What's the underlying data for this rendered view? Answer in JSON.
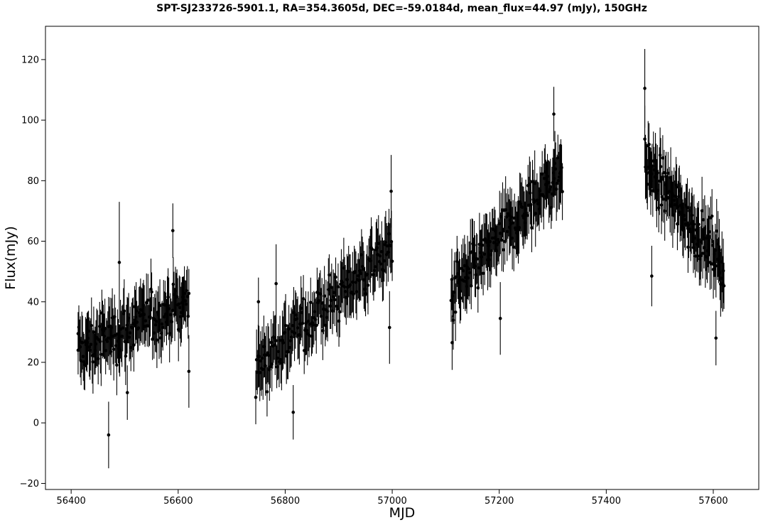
{
  "chart_data": {
    "type": "scatter",
    "title": "SPT-SJ233726-5901.1, RA=354.3605d, DEC=-59.0184d, mean_flux=44.97 (mJy), 150GHz",
    "xlabel": "MJD",
    "ylabel": "Flux(mJy)",
    "xlim": [
      56352,
      57685
    ],
    "ylim": [
      -22,
      131
    ],
    "x_ticks": [
      56400,
      56600,
      56800,
      57000,
      57200,
      57400,
      57600
    ],
    "x_tick_labels": [
      "56400",
      "56600",
      "56800",
      "57000",
      "57200",
      "57400",
      "57600"
    ],
    "y_ticks": [
      -20,
      0,
      20,
      40,
      60,
      80,
      100,
      120
    ],
    "y_tick_labels": [
      "−20",
      "0",
      "20",
      "40",
      "60",
      "80",
      "100",
      "120"
    ],
    "grid": false,
    "marker_color": "#000000",
    "error_bars": true,
    "series": [
      {
        "seasons": [
          {
            "x_range": [
              56413,
              56620
            ],
            "y_start": 24,
            "y_end": 40,
            "scatter": 7,
            "error": 8.5,
            "count": 150
          },
          {
            "x_range": [
              56745,
              57000
            ],
            "y_start": 19,
            "y_end": 58,
            "scatter": 7,
            "error": 8.5,
            "count": 170
          },
          {
            "x_range": [
              57110,
              57318
            ],
            "y_start": 42,
            "y_end": 84,
            "scatter": 7,
            "error": 9,
            "count": 150
          },
          {
            "x_range": [
              57472,
              57620
            ],
            "y_start": 85,
            "y_end": 52,
            "scatter": 7,
            "error": 9,
            "count": 120
          }
        ],
        "points": [
          {
            "x": 56413,
            "y": 24,
            "err": 8
          },
          {
            "x": 56470,
            "y": -4,
            "err": 11
          },
          {
            "x": 56490,
            "y": 53,
            "err": 20
          },
          {
            "x": 56505,
            "y": 10,
            "err": 9
          },
          {
            "x": 56590,
            "y": 63.5,
            "err": 9
          },
          {
            "x": 56620,
            "y": 17,
            "err": 12
          },
          {
            "x": 56750,
            "y": 40,
            "err": 8
          },
          {
            "x": 56783,
            "y": 46,
            "err": 13
          },
          {
            "x": 56815,
            "y": 3.5,
            "err": 9
          },
          {
            "x": 56995,
            "y": 31.5,
            "err": 12
          },
          {
            "x": 56998,
            "y": 76.5,
            "err": 12
          },
          {
            "x": 57112,
            "y": 26.5,
            "err": 9
          },
          {
            "x": 57202,
            "y": 34.5,
            "err": 12
          },
          {
            "x": 57302,
            "y": 102,
            "err": 9
          },
          {
            "x": 57472,
            "y": 110.5,
            "err": 13
          },
          {
            "x": 57480,
            "y": 92,
            "err": 7
          },
          {
            "x": 57485,
            "y": 48.5,
            "err": 10
          },
          {
            "x": 57605,
            "y": 28,
            "err": 9
          },
          {
            "x": 57618,
            "y": 46,
            "err": 9
          }
        ]
      }
    ]
  }
}
